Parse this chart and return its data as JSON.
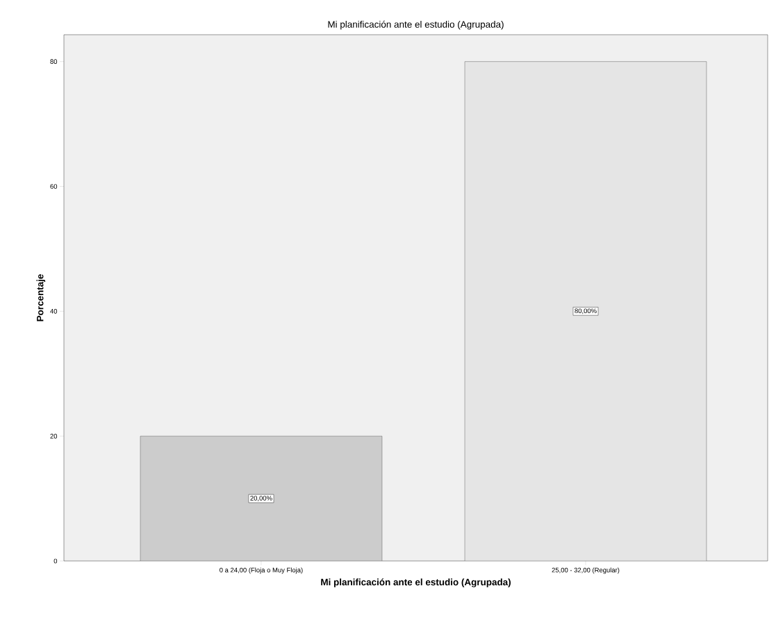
{
  "chart_data": {
    "type": "bar",
    "title": "Mi planificación ante el estudio (Agrupada)",
    "xlabel": "Mi planificación ante el estudio (Agrupada)",
    "ylabel": "Porcentaje",
    "categories": [
      "0 a 24,00 (Floja o Muy Floja)",
      "25,00 - 32,00 (Regular)"
    ],
    "values": [
      20,
      80
    ],
    "colors": [
      "#cccccc",
      "#e5e5e5"
    ],
    "value_labels": [
      "20,00%",
      "80,00%"
    ],
    "ylim": [
      0,
      84.3
    ],
    "yticks": [
      0,
      20,
      40,
      60,
      80
    ]
  }
}
